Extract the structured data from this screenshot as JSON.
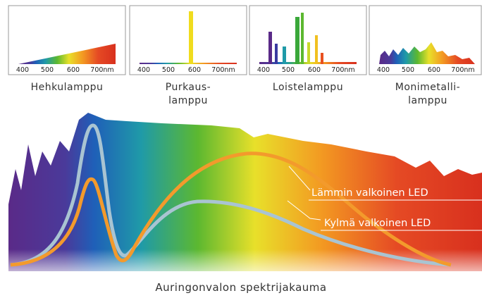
{
  "panels": [
    {
      "label_lines": [
        "Hehkulamppu"
      ],
      "ticks": [
        "400",
        "500",
        "600",
        "700nm"
      ]
    },
    {
      "label_lines": [
        "Purkaus-",
        "lamppu"
      ],
      "ticks": [
        "400",
        "500",
        "600",
        "700nm"
      ]
    },
    {
      "label_lines": [
        "Loistelamppu"
      ],
      "ticks": [
        "400",
        "500",
        "600",
        "700nm"
      ]
    },
    {
      "label_lines": [
        "Monimetalli-",
        "lamppu"
      ],
      "ticks": [
        "400",
        "500",
        "600",
        "700nm"
      ]
    }
  ],
  "main": {
    "warm_label": "Lämmin valkoinen LED",
    "cold_label": "Kylmä valkoinen LED",
    "caption": "Auringonvalon spektrijakauma"
  }
}
